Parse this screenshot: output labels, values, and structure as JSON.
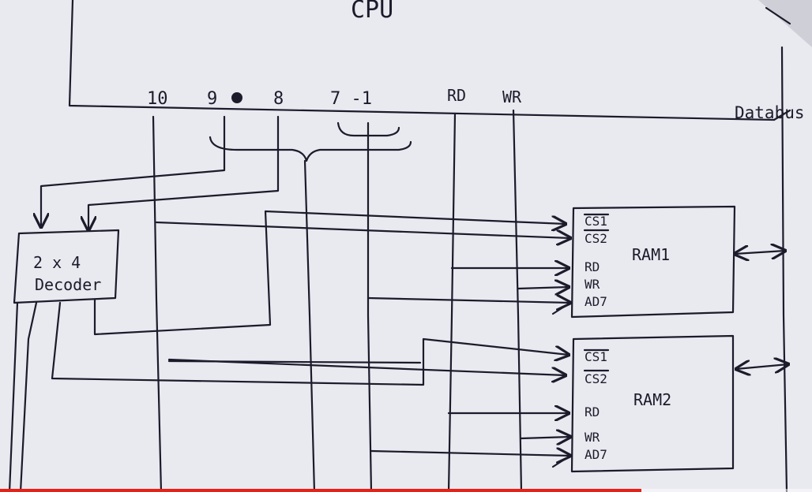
{
  "diagram": {
    "cpu_label": "CPU",
    "address_labels": [
      "10",
      "9",
      "8",
      "7 -1"
    ],
    "control_labels": {
      "rd": "RD",
      "wr": "WR"
    },
    "databus_label": "Databus",
    "decoder": {
      "line1": "2 x 4",
      "line2": "Decoder"
    },
    "ram1": {
      "name": "RAM1",
      "pins": [
        "CS1",
        "CS2",
        "RD",
        "WR",
        "AD7"
      ]
    },
    "ram2": {
      "name": "RAM2",
      "pins": [
        "CS1",
        "CS2",
        "RD",
        "WR",
        "AD7"
      ]
    }
  },
  "player": {
    "progress": 0.79,
    "progress_color": "#e62117"
  }
}
